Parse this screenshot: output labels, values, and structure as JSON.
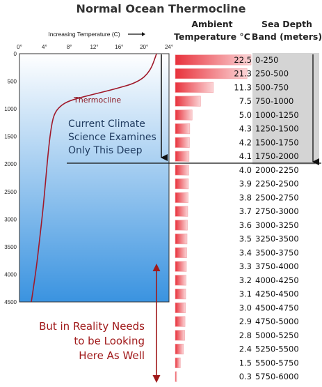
{
  "title": "Normal Ocean Thermocline",
  "headers": {
    "ambient_line1": "Ambient",
    "ambient_line2": "Temperature °C",
    "depth_line1": "Sea Depth",
    "depth_line2": "Band (meters)"
  },
  "colors": {
    "accent_red": "#a0191a",
    "bar_red": "#e8323c",
    "curve": "#a0192a",
    "ocean_top": "#ffffff",
    "ocean_bottom": "#3a93e0",
    "band_grey": "#d4d4d4"
  },
  "annotations": {
    "current_science": [
      "Current Climate",
      "Science Examines",
      "Only This Deep"
    ],
    "reality": [
      "But in Reality Needs",
      "to be Looking",
      "Here As Well"
    ],
    "thermocline_label": "Thermocline"
  },
  "chart_data": [
    {
      "type": "line",
      "title": "",
      "xlabel": "Increasing Temperature (C)",
      "ylabel": "",
      "x_ticks": [
        "0°",
        "4°",
        "8°",
        "12°",
        "16°",
        "20°",
        "24°"
      ],
      "y_ticks": [
        "0",
        "500",
        "1000",
        "1500",
        "2000",
        "2500",
        "3000",
        "3500",
        "4000",
        "4500"
      ],
      "xlim": [
        0,
        24
      ],
      "ylim": [
        4500,
        0
      ],
      "grid": false,
      "series": [
        {
          "x": [
            22,
            21,
            19,
            15,
            11,
            8,
            6.5,
            5.5,
            5,
            4.6,
            4.2,
            3.8,
            3.3,
            2.8,
            2.3,
            1.9
          ],
          "y": [
            0,
            320,
            520,
            650,
            760,
            850,
            950,
            1100,
            1400,
            1800,
            2300,
            2800,
            3300,
            3800,
            4200,
            4500
          ]
        }
      ]
    },
    {
      "type": "bar",
      "title": "",
      "categories": [
        "0-250",
        "250-500",
        "500-750",
        "750-1000",
        "1000-1250",
        "1250-1500",
        "1500-1750",
        "1750-2000",
        "2000-2250",
        "2250-2500",
        "2500-2750",
        "2750-3000",
        "3000-3250",
        "3250-3500",
        "3500-3750",
        "3750-4000",
        "4000-4250",
        "4250-4500",
        "4500-4750",
        "4750-5000",
        "5000-5250",
        "5250-5500",
        "5500-5750",
        "5750-6000"
      ],
      "values": [
        22.5,
        21.3,
        11.3,
        7.5,
        5.0,
        4.3,
        4.2,
        4.1,
        4.0,
        3.9,
        3.8,
        3.7,
        3.6,
        3.5,
        3.4,
        3.3,
        3.2,
        3.1,
        3.0,
        2.9,
        2.8,
        2.4,
        1.5,
        0.3
      ],
      "labels": [
        "22.5",
        "21.3",
        "11.3",
        "7.5",
        "5.0",
        "4.3",
        "4.2",
        "4.1",
        "4.0",
        "3.9",
        "3.8",
        "3.7",
        "3.6",
        "3.5",
        "3.4",
        "3.3",
        "3.2",
        "3.1",
        "3.0",
        "2.9",
        "2.8",
        "2.4",
        "1.5",
        "0.3"
      ],
      "xlim": [
        0,
        22.5
      ],
      "examined_limit": "1750-2000"
    }
  ]
}
